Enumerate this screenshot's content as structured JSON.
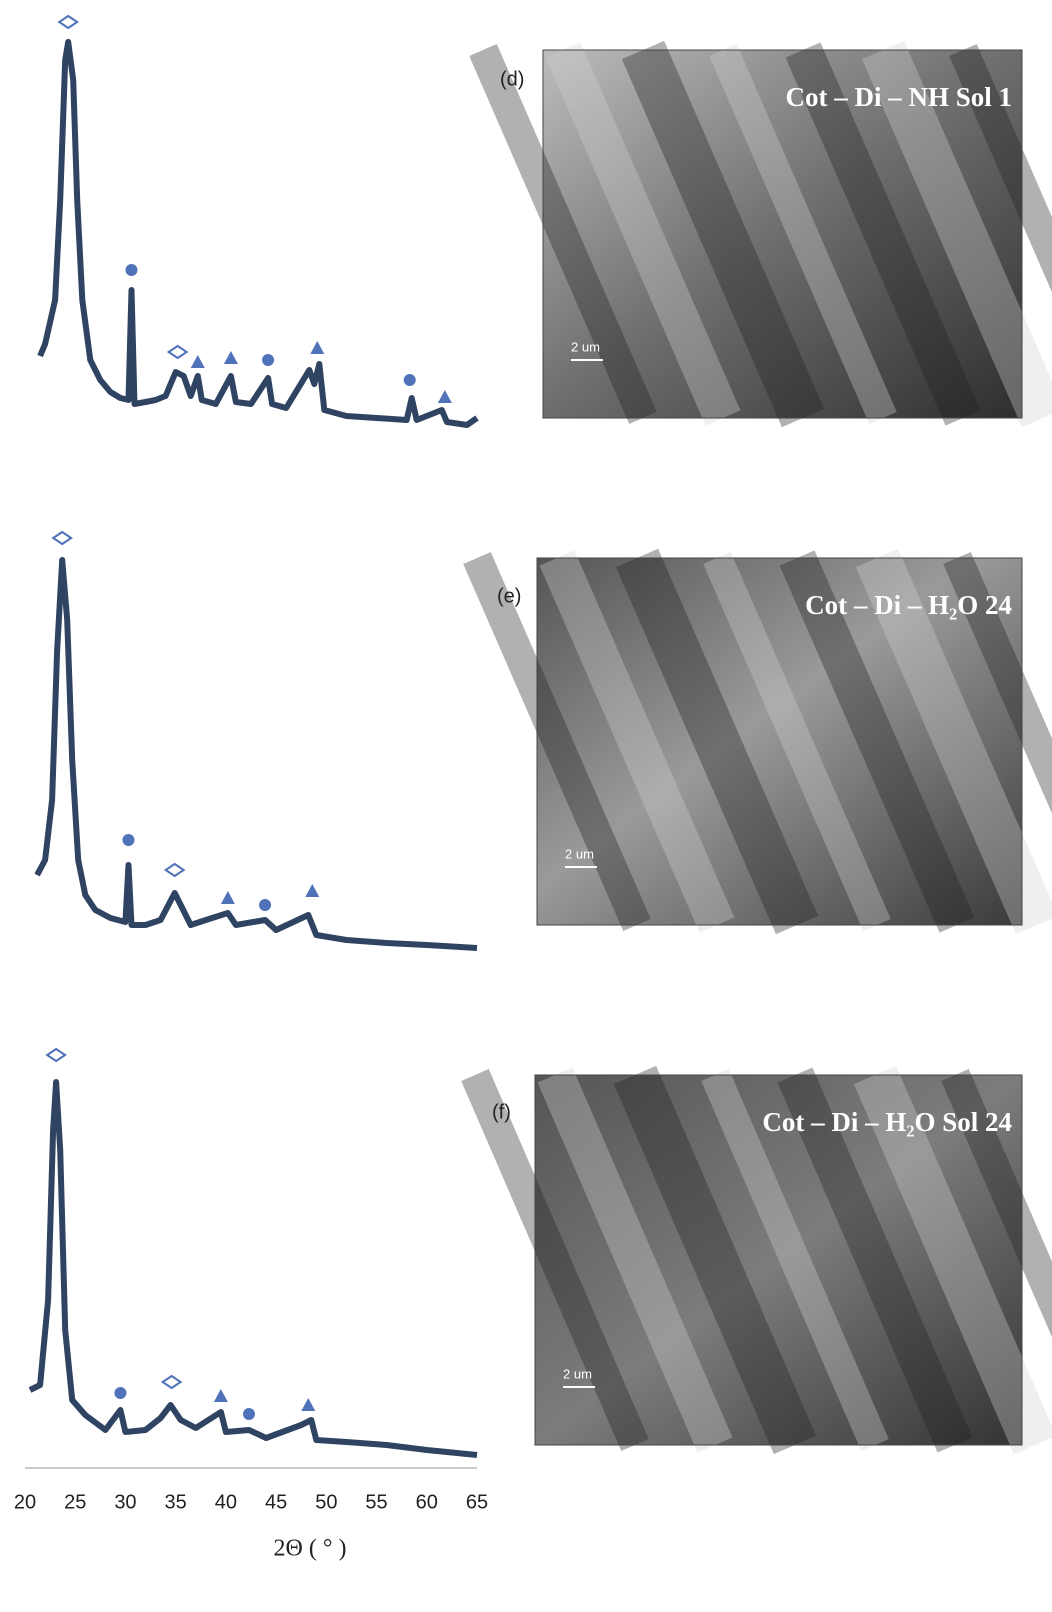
{
  "chart_data": [
    {
      "type": "line",
      "color": "#2f4462",
      "xlim": [
        20,
        65
      ],
      "ylim": [
        0,
        100
      ],
      "x": [
        21.5,
        22,
        23,
        23.5,
        24,
        24.3,
        24.8,
        25.2,
        25.7,
        26.5,
        27.5,
        28.5,
        29.5,
        30.3,
        30.6,
        30.9,
        32,
        33,
        34,
        35,
        35.8,
        36.5,
        37.2,
        37.6,
        39,
        40.5,
        41,
        42.5,
        44.2,
        44.6,
        46,
        48.3,
        48.8,
        49.3,
        49.8,
        52,
        55,
        58,
        58.5,
        59,
        61.5,
        62,
        64,
        65
      ],
      "values": [
        21,
        24,
        35,
        60,
        95,
        99.5,
        90,
        60,
        35,
        20,
        15,
        12,
        10.5,
        10,
        37.5,
        9,
        9.5,
        10,
        11,
        17,
        16,
        11,
        16,
        10,
        9,
        16,
        9.5,
        9,
        15.5,
        9,
        8,
        17.5,
        14,
        19,
        7.5,
        6,
        5.5,
        5,
        10.5,
        5,
        7.5,
        4.5,
        3.75,
        5.5
      ],
      "marker_color": "#4f72b8",
      "markers": [
        {
          "shape": "diamond",
          "x": 24.3,
          "y": 104.5
        },
        {
          "shape": "circle",
          "x": 30.6,
          "y": 42.5
        },
        {
          "shape": "diamond",
          "x": 35.2,
          "y": 22
        },
        {
          "shape": "triangle",
          "x": 37.2,
          "y": 19.5
        },
        {
          "shape": "triangle",
          "x": 40.5,
          "y": 20.5
        },
        {
          "shape": "circle",
          "x": 44.2,
          "y": 20
        },
        {
          "shape": "triangle",
          "x": 49.1,
          "y": 23
        },
        {
          "shape": "circle",
          "x": 58.3,
          "y": 15
        },
        {
          "shape": "triangle",
          "x": 61.8,
          "y": 10.75
        }
      ]
    },
    {
      "type": "line",
      "color": "#2f4462",
      "xlim": [
        20,
        65
      ],
      "ylim": [
        0,
        100
      ],
      "x": [
        21.2,
        22,
        22.7,
        23.2,
        23.7,
        24.2,
        24.7,
        25.3,
        26,
        27,
        28.5,
        30,
        30.3,
        30.6,
        32,
        33.5,
        34.9,
        35.5,
        36.5,
        38,
        40.2,
        41,
        43.9,
        45,
        48.2,
        49,
        52,
        56,
        60,
        65
      ],
      "values": [
        20,
        23.75,
        38.75,
        76,
        98.75,
        83.75,
        48.75,
        23.75,
        15,
        11.25,
        9.25,
        8.25,
        22.5,
        7.5,
        7.5,
        8.75,
        15.5,
        12.5,
        7.5,
        8.75,
        10.5,
        7.5,
        8.75,
        6.25,
        10,
        5,
        3.75,
        3,
        2.5,
        1.75
      ],
      "marker_color": "#4f72b8",
      "markers": [
        {
          "shape": "diamond",
          "x": 23.7,
          "y": 104.25
        },
        {
          "shape": "circle",
          "x": 30.3,
          "y": 28.75
        },
        {
          "shape": "diamond",
          "x": 34.9,
          "y": 21.25
        },
        {
          "shape": "triangle",
          "x": 40.2,
          "y": 14.25
        },
        {
          "shape": "circle",
          "x": 43.9,
          "y": 12.5
        },
        {
          "shape": "triangle",
          "x": 48.6,
          "y": 16
        }
      ]
    },
    {
      "type": "line",
      "color": "#2f4462",
      "xlim": [
        20,
        65
      ],
      "ylim": [
        0,
        100
      ],
      "x": [
        20.5,
        21.5,
        22.3,
        22.8,
        23.1,
        23.5,
        24,
        24.7,
        26,
        28,
        29.5,
        30,
        32,
        33.5,
        34.5,
        35.5,
        37,
        39.5,
        40,
        42.3,
        44,
        47.5,
        48.5,
        49,
        52,
        56,
        60,
        65
      ],
      "values": [
        20,
        21.25,
        42.5,
        85,
        97,
        80,
        35,
        17.5,
        13.75,
        10,
        15,
        9.5,
        10,
        13,
        16.25,
        12.5,
        10.5,
        14.5,
        9.5,
        10,
        8,
        11.25,
        12.5,
        7.5,
        7,
        6.25,
        5,
        3.75
      ],
      "marker_color": "#4f72b8",
      "markers": [
        {
          "shape": "diamond",
          "x": 23.1,
          "y": 103.75
        },
        {
          "shape": "circle",
          "x": 29.5,
          "y": 19.25
        },
        {
          "shape": "diamond",
          "x": 34.6,
          "y": 22
        },
        {
          "shape": "triangle",
          "x": 39.5,
          "y": 18.5
        },
        {
          "shape": "circle",
          "x": 42.3,
          "y": 14
        },
        {
          "shape": "triangle",
          "x": 48.2,
          "y": 16.25
        }
      ],
      "xticks": [
        20,
        25,
        30,
        35,
        40,
        45,
        50,
        55,
        60,
        65
      ],
      "x_label": "2Θ ( ° )"
    }
  ],
  "images": [
    {
      "panel": "(d)",
      "caption": "Cot – Di – NH Sol 1",
      "scale_bar": "2 um"
    },
    {
      "panel": "(e)",
      "caption": "Cot – Di – H₂O 24",
      "scale_bar": "2 um"
    },
    {
      "panel": "(f)",
      "caption": "Cot – Di – H₂O Sol 24",
      "scale_bar": "2 um"
    }
  ]
}
